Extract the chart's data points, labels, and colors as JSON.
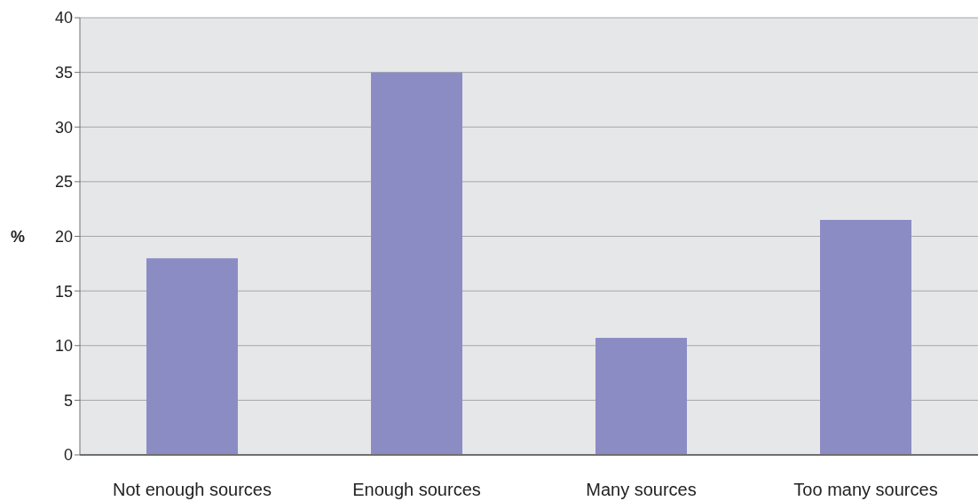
{
  "chart_data": {
    "type": "bar",
    "ylabel": "%",
    "categories": [
      "Not enough sources",
      "Enough sources",
      "Many sources",
      "Too many sources"
    ],
    "values": [
      18,
      35,
      10.7,
      21.5
    ],
    "color": "#8c8cc4",
    "ylim": [
      0,
      40
    ],
    "yticks": [
      0,
      5,
      10,
      15,
      20,
      25,
      30,
      35,
      40
    ],
    "grid": "y",
    "legend": false
  }
}
